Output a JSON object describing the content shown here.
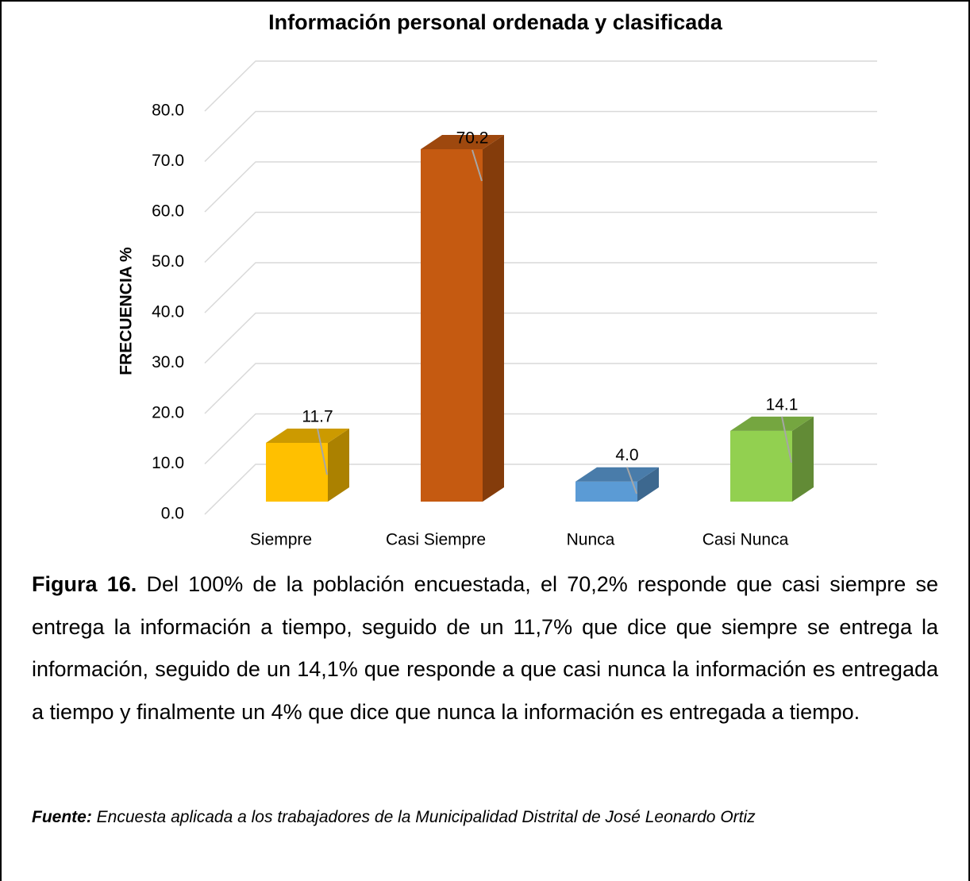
{
  "chart_data": {
    "type": "bar3d",
    "title": "Información personal ordenada y clasificada",
    "y_label": "FRECUENCIA %",
    "categories": [
      "Siempre",
      "Casi Siempre",
      "Nunca",
      "Casi Nunca"
    ],
    "values": [
      11.7,
      70.2,
      4.0,
      14.1
    ],
    "value_labels": [
      "11.7",
      "70.2",
      "4.0",
      "14.1"
    ],
    "colors": [
      "#ffc000",
      "#c55a11",
      "#5b9bd5",
      "#92d050"
    ],
    "ylim": [
      0,
      80
    ],
    "yticks": [
      {
        "value": 0,
        "label": "0.0"
      },
      {
        "value": 10,
        "label": "10.0"
      },
      {
        "value": 20,
        "label": "20.0"
      },
      {
        "value": 30,
        "label": "30.0"
      },
      {
        "value": 40,
        "label": "40.0"
      },
      {
        "value": 50,
        "label": "50.0"
      },
      {
        "value": 60,
        "label": "60.0"
      },
      {
        "value": 70,
        "label": "70.0"
      },
      {
        "value": 80,
        "label": "80.0"
      }
    ],
    "grid": true
  },
  "caption": {
    "label": "Figura 16.",
    "text": "Del 100% de la población encuestada, el 70,2% responde que casi siempre se entrega la información a tiempo, seguido de un 11,7% que dice que siempre se entrega la información, seguido de un 14,1% que responde a que casi nunca la información es entregada a tiempo y finalmente un 4% que dice que nunca la información es entregada a tiempo."
  },
  "source": {
    "label": "Fuente:",
    "text": "Encuesta aplicada a los trabajadores de la Municipalidad Distrital de José Leonardo Ortiz"
  }
}
